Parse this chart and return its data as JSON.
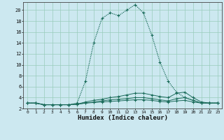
{
  "xlabel": "Humidex (Indice chaleur)",
  "bg_color": "#cce8f0",
  "grid_color": "#99ccbb",
  "line_color": "#1a6b5a",
  "xlim": [
    -0.5,
    23.5
  ],
  "ylim": [
    2,
    21.5
  ],
  "xticks": [
    0,
    1,
    2,
    3,
    4,
    5,
    6,
    7,
    8,
    9,
    10,
    11,
    12,
    13,
    14,
    15,
    16,
    17,
    18,
    19,
    20,
    21,
    22,
    23
  ],
  "yticks": [
    2,
    4,
    6,
    8,
    10,
    12,
    14,
    16,
    18,
    20
  ],
  "curves": [
    [
      3.0,
      3.0,
      2.7,
      2.7,
      2.7,
      2.7,
      3.0,
      7.0,
      14.0,
      18.5,
      19.5,
      19.0,
      20.0,
      21.0,
      19.5,
      15.5,
      10.5,
      7.0,
      5.0,
      4.0,
      3.5,
      3.0,
      3.0,
      3.0
    ],
    [
      3.0,
      3.0,
      2.7,
      2.7,
      2.7,
      2.7,
      2.8,
      3.2,
      3.5,
      3.7,
      4.0,
      4.2,
      4.5,
      4.8,
      4.8,
      4.5,
      4.2,
      4.0,
      4.8,
      5.0,
      4.0,
      3.2,
      3.0,
      3.0
    ],
    [
      3.0,
      3.0,
      2.7,
      2.7,
      2.7,
      2.7,
      2.8,
      3.0,
      3.2,
      3.4,
      3.6,
      3.7,
      3.8,
      4.0,
      4.0,
      3.8,
      3.6,
      3.4,
      3.8,
      4.0,
      3.5,
      3.0,
      3.0,
      3.0
    ],
    [
      3.0,
      3.0,
      2.7,
      2.7,
      2.7,
      2.7,
      2.8,
      3.0,
      3.1,
      3.2,
      3.3,
      3.4,
      3.5,
      3.6,
      3.6,
      3.5,
      3.3,
      3.2,
      3.4,
      3.5,
      3.2,
      3.0,
      3.0,
      3.0
    ]
  ]
}
